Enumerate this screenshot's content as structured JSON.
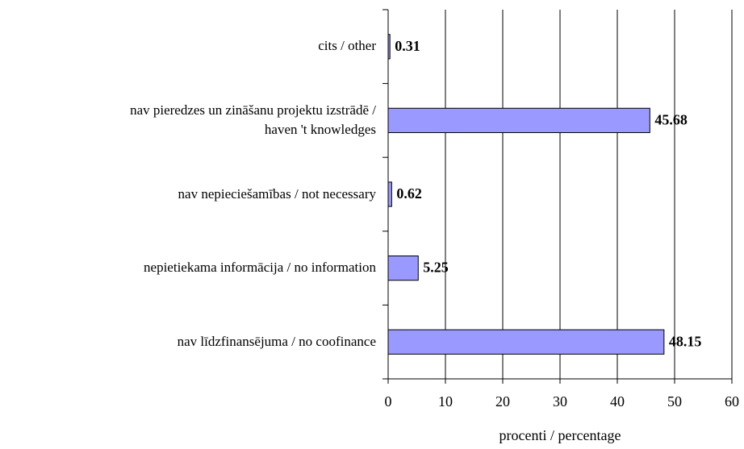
{
  "chart_data": {
    "type": "barh",
    "categories": [
      "cits / other",
      "nav pieredzes un zināšanu projektu izstrādē /\nhaven 't knowledges",
      "nav nepieciešamības / not necessary",
      "nepietiekama informācija / no information",
      "nav līdzfinansējuma / no coofinance"
    ],
    "values": [
      0.31,
      45.68,
      0.62,
      5.25,
      48.15
    ],
    "color": "#9999ff",
    "xlim": [
      0,
      60
    ],
    "xticks": [
      0,
      10,
      20,
      30,
      40,
      50,
      60
    ],
    "grid": true,
    "xlabel": "procenti / percentage"
  }
}
